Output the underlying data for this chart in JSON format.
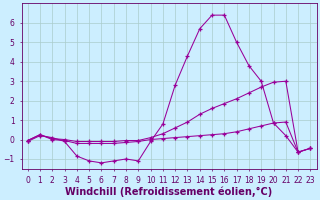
{
  "x_ticks": [
    0,
    1,
    2,
    3,
    4,
    5,
    6,
    7,
    8,
    9,
    10,
    11,
    12,
    13,
    14,
    15,
    16,
    17,
    18,
    19,
    20,
    21,
    22,
    23
  ],
  "line1_y": [
    -0.1,
    0.2,
    0.1,
    -0.1,
    -0.85,
    -1.1,
    -1.2,
    -1.1,
    -1.0,
    -1.1,
    -0.1,
    0.8,
    2.8,
    4.3,
    5.7,
    6.4,
    6.4,
    5.0,
    3.8,
    3.0,
    0.85,
    0.2,
    -0.65,
    -0.45
  ],
  "line2_y": [
    -0.05,
    0.25,
    0.05,
    0.0,
    -0.1,
    -0.1,
    -0.1,
    -0.1,
    -0.05,
    -0.05,
    0.1,
    0.3,
    0.6,
    0.9,
    1.3,
    1.6,
    1.85,
    2.1,
    2.4,
    2.7,
    2.95,
    3.0,
    -0.65,
    -0.45
  ],
  "line3_y": [
    -0.05,
    0.25,
    0.0,
    -0.05,
    -0.2,
    -0.2,
    -0.2,
    -0.2,
    -0.15,
    -0.1,
    0.0,
    0.05,
    0.1,
    0.15,
    0.2,
    0.25,
    0.3,
    0.4,
    0.55,
    0.7,
    0.85,
    0.9,
    -0.65,
    -0.45
  ],
  "color": "#990099",
  "background_color": "#cceeff",
  "grid_color": "#aacccc",
  "ylim": [
    -1.5,
    7.0
  ],
  "xlim": [
    -0.5,
    23.5
  ],
  "xlabel": "Windchill (Refroidissement éolien,°C)",
  "ylabel_ticks": [
    -1,
    0,
    1,
    2,
    3,
    4,
    5,
    6
  ],
  "title_color": "#660066",
  "axis_color": "#660066",
  "tick_fontsize": 5.5,
  "label_fontsize": 7.0
}
